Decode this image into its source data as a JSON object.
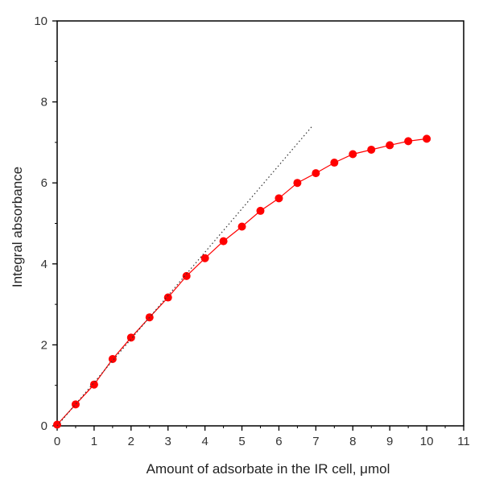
{
  "chart_data": {
    "type": "line",
    "xlabel": "Amount of adsorbate in the IR cell, μmol",
    "ylabel": "Integral absorbance",
    "xlim": [
      0,
      11
    ],
    "ylim": [
      0,
      10
    ],
    "x_ticks": [
      0,
      1,
      2,
      3,
      4,
      5,
      6,
      7,
      8,
      9,
      10,
      11
    ],
    "y_ticks": [
      0,
      2,
      4,
      6,
      8,
      10
    ],
    "grid": false,
    "legend": "none",
    "series": [
      {
        "x": [
          0,
          0.5,
          1,
          1.5,
          2,
          2.5,
          3,
          3.5,
          4,
          4.5,
          5,
          5.5,
          6,
          6.5,
          7,
          7.5,
          8,
          8.5,
          9,
          9.5,
          10
        ],
        "y": [
          0.03,
          0.53,
          1.02,
          1.65,
          2.18,
          2.68,
          3.17,
          3.7,
          4.14,
          4.56,
          4.92,
          5.31,
          5.62,
          6.0,
          6.24,
          6.5,
          6.71,
          6.82,
          6.93,
          7.03,
          7.09
        ],
        "color": "#ff0000",
        "style": "line-with-markers"
      },
      {
        "x": [
          0,
          6.9
        ],
        "y": [
          0,
          7.4
        ],
        "color": "#333333",
        "style": "dotted"
      }
    ]
  }
}
